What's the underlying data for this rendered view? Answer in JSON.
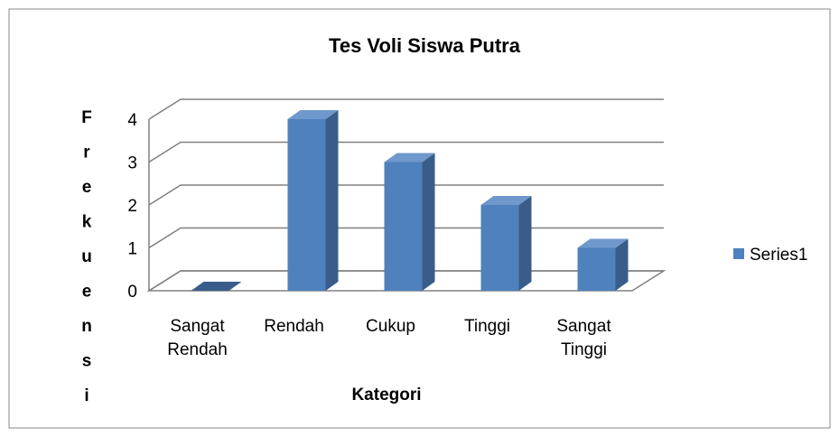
{
  "chart_data": {
    "type": "bar3d",
    "title": "Tes Voli Siswa Putra",
    "categories": [
      "Sangat Rendah",
      "Rendah",
      "Cukup",
      "Tinggi",
      "Sangat Tinggi"
    ],
    "series": [
      {
        "name": "Series1",
        "color": "#4f81bd",
        "values": [
          0,
          4,
          3,
          2,
          1
        ]
      }
    ],
    "ylim": [
      0,
      4
    ],
    "yticks": [
      0,
      1,
      2,
      3,
      4
    ],
    "grid": true,
    "legend": "right",
    "xlabel": "Kategori",
    "ylabel": "Frekuensi"
  }
}
